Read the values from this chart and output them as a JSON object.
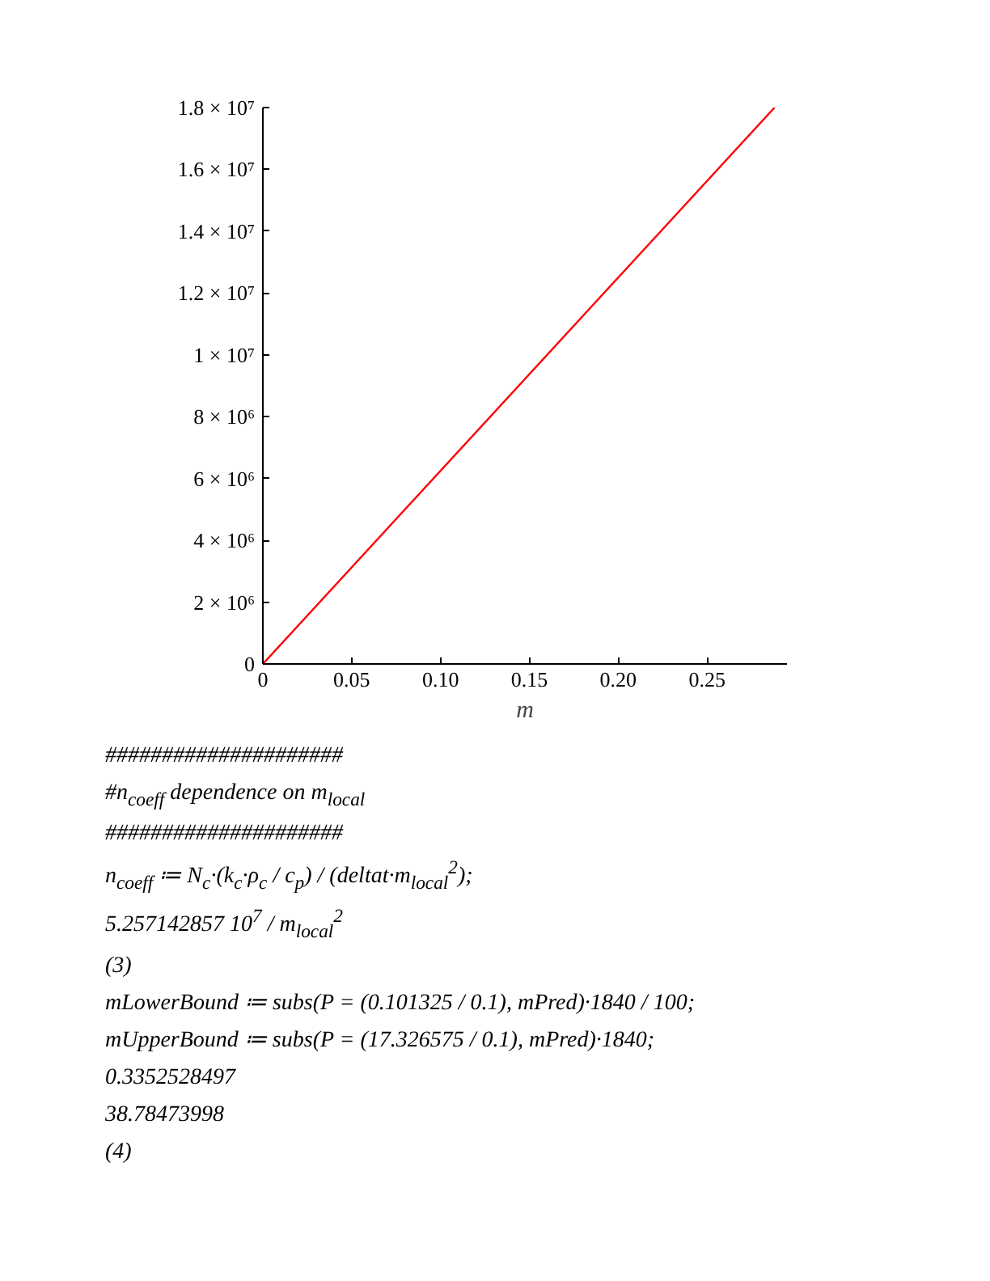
{
  "chart_data": {
    "type": "line",
    "xlabel": "m",
    "x": [
      0,
      0.288
    ],
    "series": [
      {
        "color": "#ff0000",
        "values": [
          0,
          18000000
        ]
      }
    ],
    "xlim": [
      0,
      0.295
    ],
    "ylim": [
      0,
      18000000
    ],
    "xticks": [
      0,
      0.05,
      {
        "value": 0.1,
        "label": "0.10"
      },
      {
        "value": 0.15,
        "label": "0.15"
      },
      {
        "value": 0.2,
        "label": "0.20"
      },
      0.25
    ],
    "yticks": [
      0,
      {
        "value": 2000000,
        "label": "2 × 10⁶"
      },
      {
        "value": 4000000,
        "label": "4 × 10⁶"
      },
      {
        "value": 6000000,
        "label": "6 × 10⁶"
      },
      {
        "value": 8000000,
        "label": "8 × 10⁶"
      },
      {
        "value": 10000000,
        "label": "1 × 10⁷"
      },
      {
        "value": 12000000,
        "label": "1.2 × 10⁷"
      },
      {
        "value": 14000000,
        "label": "1.4 × 10⁷"
      },
      {
        "value": 16000000,
        "label": "1.6 × 10⁷"
      },
      {
        "value": 18000000,
        "label": "1.8 × 10⁷"
      }
    ],
    "grid": false,
    "annotations": [
      "#####################",
      "#n$_{coeff}$ dependence on m$_{local}$",
      "#####################",
      "n$_{coeff}$ ≔ N$_{c}$·(k$_{c}$·ρ$_{c}$ / c$_{p}$) / (deltat·m$_{local}$$^{2}$);",
      "5.257142857 10$^{7}$ / m$_{local}$$^{2}$",
      "(3)",
      "mLowerBound ≔ subs(P = (0.101325 / 0.1), mPred)·1840 / 100;",
      "mUpperBound ≔ subs(P = (17.326575 / 0.1), mPred)·1840;",
      "0.3352528497",
      "38.78473998",
      "(4)"
    ]
  }
}
